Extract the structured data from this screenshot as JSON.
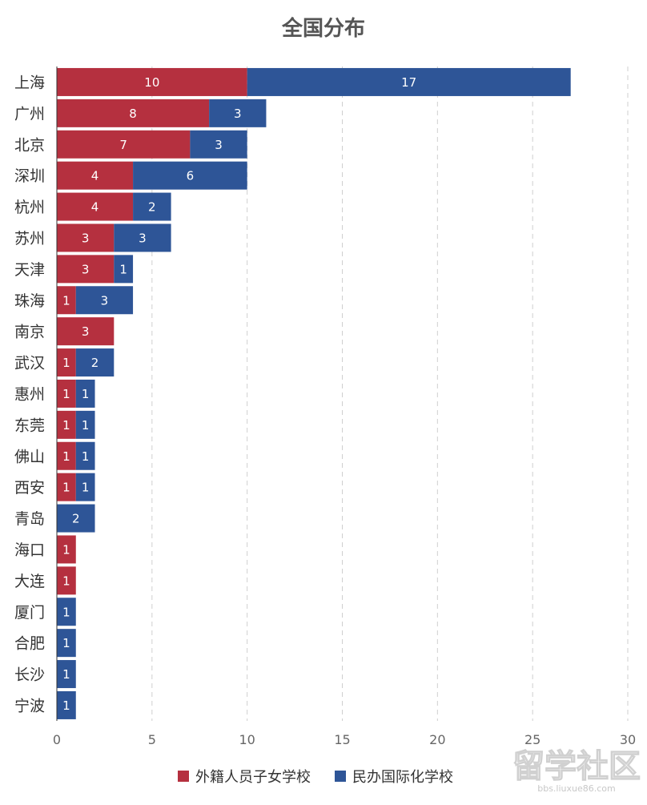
{
  "chart_data": {
    "type": "bar",
    "orientation": "horizontal",
    "stacked": true,
    "title": "全国分布",
    "xlabel": "",
    "ylabel": "",
    "xlim": [
      0,
      30
    ],
    "xticks": [
      0,
      5,
      10,
      15,
      20,
      25,
      30
    ],
    "grid": "vertical dashed",
    "legend_position": "bottom",
    "categories": [
      "上海",
      "广州",
      "北京",
      "深圳",
      "杭州",
      "苏州",
      "天津",
      "珠海",
      "南京",
      "武汉",
      "惠州",
      "东莞",
      "佛山",
      "西安",
      "青岛",
      "海口",
      "大连",
      "厦门",
      "合肥",
      "长沙",
      "宁波"
    ],
    "series": [
      {
        "name": "外籍人员子女学校",
        "color": "#b5303f",
        "values": [
          10,
          8,
          7,
          4,
          4,
          3,
          3,
          1,
          3,
          1,
          1,
          1,
          1,
          1,
          0,
          1,
          1,
          0,
          0,
          0,
          0
        ]
      },
      {
        "name": "民办国际化学校",
        "color": "#2e5597",
        "values": [
          17,
          3,
          3,
          6,
          2,
          3,
          1,
          3,
          0,
          2,
          1,
          1,
          1,
          1,
          2,
          0,
          0,
          1,
          1,
          1,
          1
        ]
      }
    ]
  },
  "watermark": {
    "main": "留学社区",
    "sub": "bbs.liuxue86.com"
  }
}
